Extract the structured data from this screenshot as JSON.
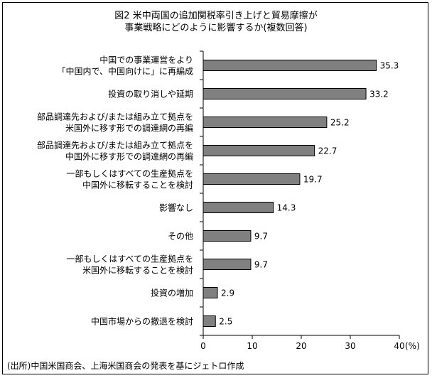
{
  "chart_data": {
    "type": "bar",
    "orientation": "horizontal",
    "title_lines": [
      "図2  米中両国の追加関税率引き上げと貿易摩擦が",
      "事業戦略にどのように影響するか(複数回答)"
    ],
    "categories": [
      [
        "中国での事業運営をより",
        "「中国内で、中国向けに」に再編成"
      ],
      [
        "投資の取り消しや延期"
      ],
      [
        "部品調達先および/または組み立て拠点を",
        "米国外に移す形での調達網の再編"
      ],
      [
        "部品調達先および/または組み立て拠点を",
        "中国外に移す形での調達網の再編"
      ],
      [
        "一部もしくはすべての生産拠点を",
        "中国外に移転することを検討"
      ],
      [
        "影響なし"
      ],
      [
        "その他"
      ],
      [
        "一部もしくはすべての生産拠点を",
        "米国外に移転することを検討"
      ],
      [
        "投資の増加"
      ],
      [
        "中国市場からの撤退を検討"
      ]
    ],
    "values": [
      35.3,
      33.2,
      25.2,
      22.7,
      19.7,
      14.3,
      9.7,
      9.7,
      2.9,
      2.5
    ],
    "value_labels": [
      "35.3",
      "33.2",
      "25.2",
      "22.7",
      "19.7",
      "14.3",
      "9.7",
      "9.7",
      "2.9",
      "2.5"
    ],
    "xlim": [
      0,
      40
    ],
    "xticks": [
      "0",
      "10",
      "20",
      "30",
      "40"
    ],
    "unit": "(%)",
    "bar_color": "#808080",
    "source": "(出所)中国米国商会、上海米国商会の発表を基にジェトロ作成"
  }
}
